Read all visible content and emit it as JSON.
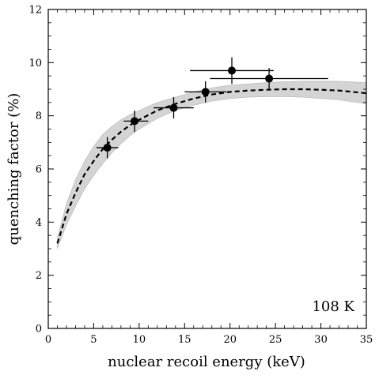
{
  "chart_data": {
    "type": "scatter",
    "title": "",
    "xlabel": "nuclear recoil energy (keV)",
    "ylabel": "quenching factor (%)",
    "xlim": [
      0,
      35
    ],
    "ylim": [
      0,
      12
    ],
    "x_ticks": [
      "0",
      "5",
      "10",
      "15",
      "20",
      "25",
      "30",
      "35"
    ],
    "y_ticks": [
      "0",
      "2",
      "4",
      "6",
      "8",
      "10",
      "12"
    ],
    "annotation": "108 K",
    "grid": false,
    "series": [
      {
        "kind": "points_with_errorbars",
        "points": [
          {
            "x": 6.5,
            "y": 6.8,
            "xerr_low": 1.2,
            "xerr_high": 1.2,
            "yerr": 0.4
          },
          {
            "x": 9.5,
            "y": 7.8,
            "xerr_low": 1.2,
            "xerr_high": 1.5,
            "yerr": 0.4
          },
          {
            "x": 13.8,
            "y": 8.3,
            "xerr_low": 2.2,
            "xerr_high": 2.2,
            "yerr": 0.4
          },
          {
            "x": 17.3,
            "y": 8.9,
            "xerr_low": 2.3,
            "xerr_high": 2.3,
            "yerr": 0.4
          },
          {
            "x": 20.2,
            "y": 9.7,
            "xerr_low": 4.6,
            "xerr_high": 4.6,
            "yerr": 0.5
          },
          {
            "x": 24.3,
            "y": 9.4,
            "xerr_low": 6.5,
            "xerr_high": 6.5,
            "yerr": 0.4
          }
        ]
      },
      {
        "kind": "dashed_fit_curve",
        "x": [
          1.0,
          2.0,
          3.0,
          4.0,
          5.0,
          6.0,
          7.0,
          8.0,
          9.0,
          10.0,
          12.0,
          14.0,
          16.0,
          18.0,
          20.0,
          22.0,
          24.0,
          26.0,
          28.0,
          30.0,
          32.0,
          35.0
        ],
        "y": [
          3.2,
          4.3,
          5.1,
          5.8,
          6.3,
          6.75,
          7.1,
          7.4,
          7.65,
          7.85,
          8.2,
          8.45,
          8.65,
          8.8,
          8.9,
          8.95,
          8.98,
          9.0,
          9.0,
          8.98,
          8.95,
          8.85
        ]
      },
      {
        "kind": "uncertainty_band",
        "x": [
          1.0,
          2.0,
          3.0,
          4.0,
          5.0,
          6.0,
          7.0,
          8.0,
          9.0,
          10.0,
          12.0,
          14.0,
          16.0,
          18.0,
          20.0,
          22.0,
          24.0,
          26.0,
          28.0,
          30.0,
          32.0,
          35.0
        ],
        "lower": [
          3.0,
          3.9,
          4.6,
          5.25,
          5.75,
          6.2,
          6.6,
          6.95,
          7.25,
          7.5,
          7.9,
          8.2,
          8.4,
          8.55,
          8.65,
          8.7,
          8.72,
          8.72,
          8.7,
          8.65,
          8.6,
          8.45
        ],
        "upper": [
          3.4,
          4.7,
          5.6,
          6.3,
          6.85,
          7.3,
          7.6,
          7.85,
          8.05,
          8.2,
          8.5,
          8.7,
          8.9,
          9.05,
          9.15,
          9.2,
          9.25,
          9.28,
          9.3,
          9.3,
          9.3,
          9.25
        ]
      }
    ],
    "colors": {
      "band": "#d4d4d4",
      "band_edge": "#b5b5b5",
      "points": "#000000",
      "curve": "#000000"
    }
  }
}
